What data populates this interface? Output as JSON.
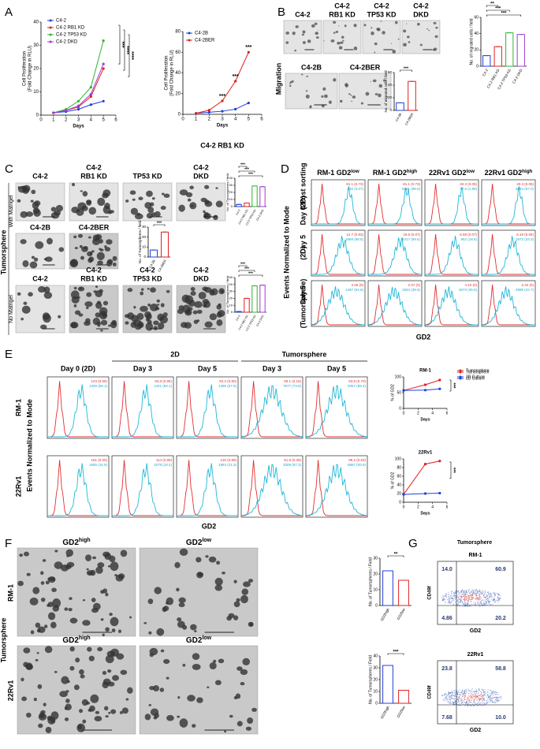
{
  "chart_data": [
    {
      "type": "line",
      "y_label": [
        "Cell Proliferation",
        "(Fold Change in RLU)"
      ],
      "x_label": "Days",
      "x": [
        1,
        2,
        3,
        4,
        5
      ],
      "xlim": [
        0,
        6
      ],
      "xticks": [
        0,
        1,
        2,
        3,
        4,
        5,
        6
      ],
      "ylim": [
        0,
        40
      ],
      "yticks": [
        0,
        10,
        20,
        30,
        40
      ],
      "series": [
        {
          "name": "C4-2",
          "color": "#1f3fe0",
          "values": [
            1,
            1.5,
            2.5,
            4.5,
            6
          ]
        },
        {
          "name": "C4-2 RB1 KD",
          "color": "#e02020",
          "values": [
            1,
            2,
            3.5,
            8,
            20
          ]
        },
        {
          "name": "C4-2 TP53 KD",
          "color": "#2fb52f",
          "values": [
            1,
            2.5,
            6,
            12,
            32
          ]
        },
        {
          "name": "C4-2 DKD",
          "color": "#a03cd0",
          "values": [
            1,
            2,
            4,
            9,
            22
          ]
        }
      ],
      "annotations": [
        "***",
        "****",
        "****"
      ]
    },
    {
      "type": "line",
      "y_label": [
        "Cell Proliferation",
        "(Fold Change in RLU)"
      ],
      "x_label": "Days",
      "caption": "C4-2 RB1 KD",
      "x": [
        1,
        2,
        3,
        4,
        5
      ],
      "xlim": [
        0,
        6
      ],
      "xticks": [
        0,
        1,
        2,
        3,
        4,
        5,
        6
      ],
      "ylim": [
        0,
        80
      ],
      "yticks": [
        0,
        20,
        40,
        60,
        80
      ],
      "series": [
        {
          "name": "C4-2B",
          "color": "#1f3fe0",
          "values": [
            1,
            2,
            3,
            5,
            11
          ]
        },
        {
          "name": "C4-2BER",
          "color": "#e02020",
          "values": [
            1,
            4,
            13,
            32,
            60
          ]
        }
      ],
      "annotations": [
        "***",
        "***",
        "***"
      ]
    },
    {
      "type": "bar",
      "y_label": [
        "No. of migrated cells / field"
      ],
      "categories": [
        "C4-2",
        "C4-2 RB1 KD",
        "C4-2 TP53 KD",
        "C4-2 DKD"
      ],
      "values": [
        13,
        24,
        41,
        39
      ],
      "colors": [
        "#1f3fe0",
        "#e02020",
        "#2fb52f",
        "#a03cd0"
      ],
      "ylim": [
        0,
        60
      ],
      "yticks": [
        0,
        20,
        40,
        60
      ],
      "annotations": [
        "**",
        "***",
        "***"
      ]
    },
    {
      "type": "bar",
      "y_label": [
        "No. of migrated cells / field"
      ],
      "categories": [
        "C4-2B",
        "C4-2BER"
      ],
      "values": [
        12,
        46
      ],
      "colors": [
        "#1f3fe0",
        "#e02020"
      ],
      "ylim": [
        0,
        60
      ],
      "yticks": [
        0,
        20,
        40,
        60
      ],
      "annotations": [
        "***"
      ]
    },
    {
      "type": "bar",
      "y_label": [
        "No. of Tumorspheres / field"
      ],
      "categories": [
        "C4-2",
        "C4-2 RB1 KD",
        "C4-2 TP53 KD",
        "C4-2 DKD"
      ],
      "values": [
        3,
        5,
        29,
        28
      ],
      "colors": [
        "#1f3fe0",
        "#e02020",
        "#2fb52f",
        "#a03cd0"
      ],
      "ylim": [
        0,
        40
      ],
      "yticks": [
        0,
        10,
        20,
        30,
        40
      ],
      "annotations": [
        "***",
        "***",
        "***"
      ]
    },
    {
      "type": "bar",
      "y_label": [
        "No. of Tumorspheres / field"
      ],
      "categories": [
        "C4-2B",
        "C4-2BER"
      ],
      "values": [
        7,
        25
      ],
      "colors": [
        "#1f3fe0",
        "#e02020"
      ],
      "ylim": [
        0,
        30
      ],
      "yticks": [
        0,
        10,
        20,
        30
      ],
      "annotations": [
        "***"
      ]
    },
    {
      "type": "bar",
      "y_label": [
        "No. of Tumorspheres / field"
      ],
      "categories": [
        "C4-2",
        "C4-2 RB1 KD",
        "C4-2 TP53 KD",
        "C4-2 DKD"
      ],
      "values": [
        1,
        20,
        38,
        39
      ],
      "colors": [
        "#1f3fe0",
        "#e02020",
        "#2fb52f",
        "#a03cd0"
      ],
      "ylim": [
        0,
        50
      ],
      "yticks": [
        0,
        10,
        20,
        30,
        40,
        50
      ],
      "annotations": [
        "***",
        "***",
        "***"
      ]
    },
    {
      "type": "line",
      "title": "RM-1",
      "y_label": [
        "% of GD2"
      ],
      "x_label": "Days",
      "x": [
        0,
        3,
        5
      ],
      "xlim": [
        0,
        6
      ],
      "xticks": [
        0,
        2,
        4,
        6
      ],
      "ylim": [
        0,
        100
      ],
      "yticks": [
        0,
        50,
        100
      ],
      "series": [
        {
          "name": "Tumorsphere",
          "color": "#e02020",
          "values": [
            57,
            75,
            90
          ]
        },
        {
          "name": "2D Culture",
          "color": "#1f3fe0",
          "values": [
            57,
            58,
            62
          ]
        }
      ],
      "annotations": [
        "***"
      ]
    },
    {
      "type": "line",
      "title": "22Rv1",
      "y_label": [
        "% of GD2"
      ],
      "x_label": "Days",
      "x": [
        0,
        3,
        5
      ],
      "xlim": [
        0,
        6
      ],
      "xticks": [
        0,
        2,
        4,
        6
      ],
      "ylim": [
        0,
        100
      ],
      "yticks": [
        0,
        20,
        40,
        60,
        80,
        100
      ],
      "series": [
        {
          "name": "Tumorsphere",
          "color": "#e02020",
          "values": [
            18,
            88,
            95
          ]
        },
        {
          "name": "2D Culture",
          "color": "#1f3fe0",
          "values": [
            18,
            20,
            21
          ]
        }
      ],
      "annotations": [
        "***"
      ]
    },
    {
      "type": "bar",
      "y_label": [
        "No. of Tumorspheres / Field"
      ],
      "categories": [
        "GD2high",
        "GD2low"
      ],
      "values": [
        22,
        16
      ],
      "colors": [
        "#1f3fe0",
        "#e02020"
      ],
      "ylim": [
        0,
        30
      ],
      "yticks": [
        0,
        10,
        20,
        30
      ],
      "annotations": [
        "**"
      ]
    },
    {
      "type": "bar",
      "y_label": [
        "No. of Tumorspheres / Field"
      ],
      "categories": [
        "GD2high",
        "GD2low"
      ],
      "values": [
        32,
        11
      ],
      "colors": [
        "#1f3fe0",
        "#e02020"
      ],
      "ylim": [
        0,
        40
      ],
      "yticks": [
        0,
        10,
        20,
        30,
        40
      ],
      "annotations": [
        "***"
      ]
    }
  ],
  "labels": {
    "panels": [
      "A",
      "B",
      "C",
      "D",
      "E",
      "F",
      "G"
    ],
    "b": {
      "row1": [
        [
          "C4-2"
        ],
        [
          "C4-2",
          "RB1 KD"
        ],
        [
          "C4-2",
          "TP53 KD"
        ],
        [
          "C4-2",
          "DKD"
        ]
      ],
      "row2": [
        "C4-2B",
        "C4-2BER"
      ],
      "side": "Migration"
    },
    "c": {
      "side": "Tumorsphere",
      "with": "With Matrigel",
      "no": "No Matrigel",
      "row1": [
        [
          "C4-2"
        ],
        [
          "C4-2",
          "RB1 KD"
        ],
        [
          "TP53 KD"
        ],
        [
          "C4-2",
          "DKD"
        ]
      ],
      "row2": [
        "C4-2B",
        "C4-2BER"
      ],
      "row3": [
        [
          "C4-2"
        ],
        [
          "C4-2",
          "RB1 KD"
        ],
        [
          "C4-2",
          "TP53 KD"
        ],
        [
          "C4-2",
          "DKD"
        ]
      ]
    },
    "d": {
      "columns": [
        {
          "base": "RM-1 GD2",
          "sup": "low"
        },
        {
          "base": "RM-1 GD2",
          "sup": "high"
        },
        {
          "base": "22Rv1 GD2",
          "sup": "low"
        },
        {
          "base": "22Rv1 GD2",
          "sup": "high"
        }
      ],
      "rows": [
        [
          "Day 0 Post sorting",
          "(2D)"
        ],
        [
          "Day 5",
          "(2D)"
        ],
        [
          "Day 5",
          "(Tumorsphere)"
        ]
      ],
      "y_label": "Events Normalized to Mode",
      "x_label": "GD2",
      "stats": [
        [
          [
            "81.1 (0.73)",
            "132 (3.07)"
          ],
          [
            "81.1 (0.73)",
            "5691 (99.0)"
          ],
          [
            "40.3 (0.05)",
            "77.6 (1.89)"
          ],
          [
            "40.3 (0.05)",
            "3084 (97.0)"
          ]
        ],
        [
          [
            "12.7 (0.83)",
            "1869 (88.6)"
          ],
          [
            "19.6 (0.07)",
            "2417 (69.6)"
          ],
          [
            "6.59 (0.07)",
            "852 (18.5)"
          ],
          [
            "6.18 (0.05)",
            "1872 (33.3)"
          ]
        ],
        [
          [
            "4.26 (0)",
            "1497 (54.6)"
          ],
          [
            "2.37 (0)",
            "1943 (39.5)"
          ],
          [
            "4.10 (0)",
            "3673 (35.5)"
          ],
          [
            "3.34 (0)",
            "4998 (23.7)"
          ]
        ]
      ]
    },
    "e": {
      "groups": [
        "2D",
        "Tumorsphere"
      ],
      "columns": [
        "Day 0 (2D)",
        "Day 3",
        "Day 5",
        "Day 3",
        "Day 5"
      ],
      "rows": [
        "RM-1",
        "22Rv1"
      ],
      "y_label": "Events Normalized to Mode",
      "x_label": "GD2",
      "stats": [
        [
          [
            "123 (0.56)",
            "1326 (58.1)"
          ],
          [
            "63.8 (0.85)",
            "1421 (58.1)"
          ],
          [
            "84.2 (0.80)",
            "1486 (57.5)"
          ],
          [
            "59.1 (0.18)",
            "7677 (73.6)"
          ],
          [
            "63.8 (0.70)",
            "9357 (89.2)"
          ]
        ],
        [
          [
            "161 (0.00)",
            "1655 (16.9)"
          ],
          [
            "114 (0.89)",
            "1578 (18.4)"
          ],
          [
            "120 (0.89)",
            "1984 (21.3)"
          ],
          [
            "51.8 (0.38)",
            "3309 (87.3)"
          ],
          [
            "89.2 (0.63)",
            "8867 (93.9)"
          ]
        ]
      ]
    },
    "f": {
      "side": "Tumorsphere",
      "rows": [
        "RM-1",
        "22Rv1"
      ],
      "columns": [
        {
          "base": "GD2",
          "sup": "high"
        },
        {
          "base": "GD2",
          "sup": "low"
        }
      ]
    },
    "g": {
      "title": "Tumorsphere",
      "plots": [
        {
          "name": "RM-1",
          "quadrants": [
            "14.0",
            "60.9",
            "4.86",
            "20.2"
          ]
        },
        {
          "name": "22Rv1",
          "quadrants": [
            "23.8",
            "58.8",
            "7.68",
            "10.0"
          ]
        }
      ],
      "y_label": "CD49f",
      "x_label": "GD2"
    }
  }
}
